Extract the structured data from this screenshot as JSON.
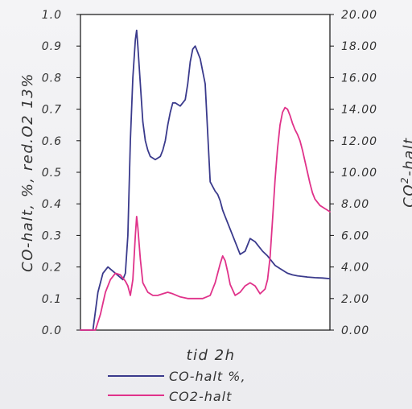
{
  "chart_data": {
    "type": "line",
    "xlabel": "tid 2h",
    "ylabel_left": "CO-halt, %, red.O2 13%",
    "ylabel_right_base": "CO",
    "ylabel_right_sup": "2",
    "ylabel_right_rest": "-halt",
    "left_axis": {
      "ylim": [
        0,
        1.0
      ],
      "ticks": [
        "0.0",
        "0.1",
        "0.2",
        "0.3",
        "0.4",
        "0.5",
        "0.6",
        "0.7",
        "0.8",
        "0.9",
        "1.0"
      ]
    },
    "right_axis": {
      "ylim": [
        0,
        20
      ],
      "ticks": [
        "0.00",
        "2.00",
        "4.00",
        "6.00",
        "8.00",
        "10.00",
        "12.00",
        "14.00",
        "16.00",
        "18.00",
        "20.00"
      ]
    },
    "xlim": [
      0,
      100
    ],
    "grid": false,
    "legend_position": "bottom",
    "series": [
      {
        "name": "CO-halt %,",
        "axis": "left",
        "color": "#3a3a8c",
        "x": [
          0,
          3,
          5,
          7,
          9,
          11,
          14,
          17,
          18,
          19,
          20,
          21,
          22,
          22.5,
          23,
          24,
          25,
          26,
          27,
          28,
          30,
          32,
          33,
          34,
          35,
          36,
          37,
          38,
          40,
          42,
          43,
          44,
          45,
          46,
          48,
          50,
          52,
          54,
          55,
          56,
          57,
          58,
          60,
          62,
          64,
          66,
          68,
          70,
          71,
          73,
          75,
          76,
          77,
          78,
          79,
          80,
          81,
          82,
          83,
          85,
          87,
          89,
          91,
          94,
          97,
          100
        ],
        "y": [
          0,
          0,
          0,
          0.12,
          0.18,
          0.2,
          0.18,
          0.16,
          0.18,
          0.3,
          0.6,
          0.8,
          0.92,
          0.95,
          0.9,
          0.78,
          0.66,
          0.6,
          0.57,
          0.55,
          0.54,
          0.55,
          0.57,
          0.6,
          0.65,
          0.69,
          0.72,
          0.72,
          0.71,
          0.73,
          0.78,
          0.85,
          0.89,
          0.9,
          0.86,
          0.78,
          0.47,
          0.44,
          0.43,
          0.41,
          0.38,
          0.36,
          0.32,
          0.28,
          0.24,
          0.25,
          0.29,
          0.28,
          0.27,
          0.25,
          0.235,
          0.225,
          0.215,
          0.205,
          0.2,
          0.195,
          0.19,
          0.185,
          0.18,
          0.175,
          0.172,
          0.17,
          0.168,
          0.166,
          0.165,
          0.163
        ]
      },
      {
        "name": "CO2-halt",
        "axis": "right",
        "color": "#e0328a",
        "x": [
          0,
          3,
          5,
          6,
          8,
          10,
          12,
          14,
          16,
          18,
          19,
          20,
          21,
          22,
          22.5,
          23,
          24,
          25,
          27,
          29,
          31,
          33,
          35,
          37,
          40,
          43,
          46,
          49,
          52,
          54,
          56,
          57,
          58,
          59,
          60,
          62,
          64,
          66,
          68,
          70,
          72,
          74,
          75,
          76,
          77,
          78,
          79,
          80,
          81,
          82,
          83,
          84,
          85,
          86,
          87,
          88,
          89,
          90,
          91,
          92,
          93,
          94,
          95,
          96,
          97,
          98,
          99,
          100
        ],
        "y": [
          0,
          0,
          0,
          0,
          1,
          2.4,
          3.2,
          3.6,
          3.5,
          3.1,
          2.8,
          2.2,
          3.2,
          6.0,
          7.2,
          6.5,
          4.5,
          3.0,
          2.4,
          2.2,
          2.2,
          2.3,
          2.4,
          2.3,
          2.1,
          2.0,
          2.0,
          2.0,
          2.2,
          3.0,
          4.2,
          4.7,
          4.4,
          3.7,
          2.9,
          2.2,
          2.4,
          2.8,
          3.0,
          2.8,
          2.3,
          2.6,
          3.2,
          4.6,
          7.0,
          9.5,
          11.5,
          13.0,
          13.8,
          14.1,
          14.0,
          13.6,
          13.1,
          12.7,
          12.4,
          12.0,
          11.4,
          10.7,
          10.0,
          9.3,
          8.7,
          8.3,
          8.1,
          7.9,
          7.8,
          7.7,
          7.6,
          7.5
        ]
      }
    ]
  }
}
